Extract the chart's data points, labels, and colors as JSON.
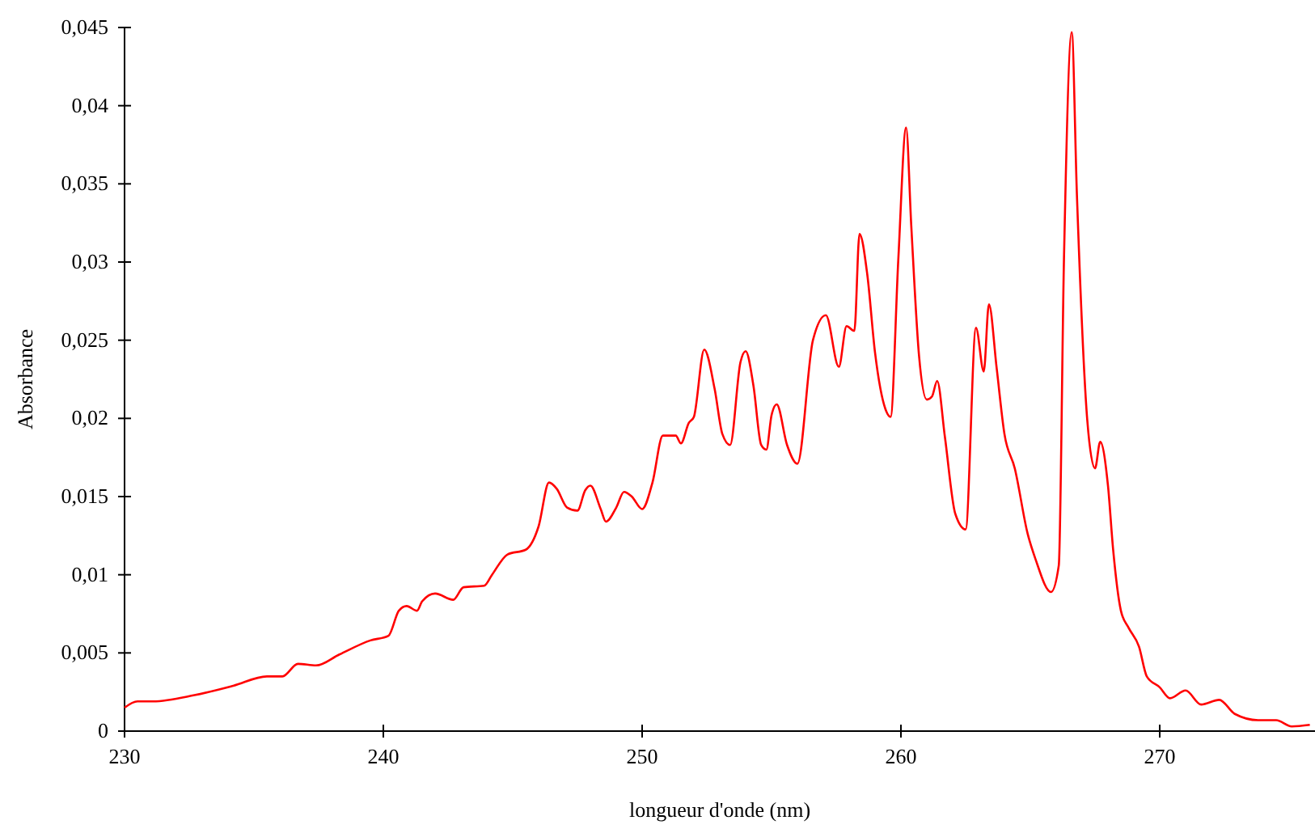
{
  "chart_data": {
    "type": "line",
    "xlabel": "longueur d'onde (nm)",
    "ylabel": "Absorbance",
    "xlim": [
      230,
      276
    ],
    "ylim": [
      0,
      0.045
    ],
    "xticks": [
      230,
      240,
      250,
      260,
      270
    ],
    "yticks": [
      {
        "value": 0,
        "label": "0"
      },
      {
        "value": 0.005,
        "label": "0,005"
      },
      {
        "value": 0.01,
        "label": "0,01"
      },
      {
        "value": 0.015,
        "label": "0,015"
      },
      {
        "value": 0.02,
        "label": "0,02"
      },
      {
        "value": 0.025,
        "label": "0,025"
      },
      {
        "value": 0.03,
        "label": "0,03"
      },
      {
        "value": 0.035,
        "label": "0,035"
      },
      {
        "value": 0.04,
        "label": "0,04"
      },
      {
        "value": 0.045,
        "label": "0,045"
      }
    ],
    "grid": false,
    "marker": "none",
    "line_style": "solid",
    "series": [
      {
        "color": "#ff0000",
        "x": [
          230,
          230.5,
          231.1,
          232.7,
          234.2,
          235.5,
          236.1,
          236.7,
          237.4,
          238.3,
          239.5,
          240.2,
          240.6,
          240.9,
          241.3,
          241.5,
          242.0,
          242.7,
          243.1,
          243.9,
          244.2,
          244.8,
          245.5,
          246.0,
          246.4,
          246.7,
          247.1,
          247.5,
          247.8,
          248.0,
          248.4,
          248.6,
          249.0,
          249.3,
          249.6,
          250.0,
          250.4,
          250.8,
          251.3,
          251.5,
          251.8,
          252.0,
          252.4,
          252.8,
          253.1,
          253.4,
          253.8,
          254.0,
          254.3,
          254.6,
          254.8,
          255.0,
          255.2,
          255.6,
          256.0,
          256.6,
          257.1,
          257.6,
          257.9,
          258.2,
          258.4,
          258.7,
          259.0,
          259.4,
          259.6,
          259.9,
          260.2,
          260.4,
          260.7,
          261.0,
          261.2,
          261.4,
          261.7,
          262.1,
          262.5,
          262.9,
          263.2,
          263.4,
          263.7,
          264.0,
          264.4,
          264.9,
          265.2,
          265.8,
          266.1,
          266.3,
          266.6,
          266.8,
          267.2,
          267.5,
          267.7,
          268.0,
          268.2,
          268.5,
          268.8,
          269.2,
          269.5,
          270.0,
          270.4,
          271.0,
          271.6,
          272.3,
          272.9,
          273.8,
          274.5,
          275.1,
          275.8
        ],
        "values": [
          0.0015,
          0.0019,
          0.0019,
          0.0023,
          0.0029,
          0.0035,
          0.0035,
          0.0043,
          0.0042,
          0.0049,
          0.0058,
          0.0061,
          0.0077,
          0.008,
          0.0077,
          0.0083,
          0.0088,
          0.0084,
          0.0092,
          0.0093,
          0.01,
          0.0113,
          0.0116,
          0.0131,
          0.0159,
          0.0155,
          0.0143,
          0.0141,
          0.0154,
          0.0157,
          0.0142,
          0.0134,
          0.0143,
          0.0153,
          0.015,
          0.0142,
          0.0159,
          0.0189,
          0.0189,
          0.0184,
          0.0197,
          0.0201,
          0.0244,
          0.0219,
          0.019,
          0.0183,
          0.0236,
          0.0243,
          0.0221,
          0.0183,
          0.018,
          0.0202,
          0.0209,
          0.0183,
          0.0171,
          0.025,
          0.0266,
          0.0233,
          0.0259,
          0.0256,
          0.0318,
          0.0292,
          0.0242,
          0.0206,
          0.0201,
          0.0302,
          0.0386,
          0.0323,
          0.024,
          0.0212,
          0.0214,
          0.0224,
          0.0188,
          0.0139,
          0.0129,
          0.0258,
          0.023,
          0.0273,
          0.0232,
          0.019,
          0.0168,
          0.0126,
          0.011,
          0.0089,
          0.0106,
          0.0302,
          0.0447,
          0.0343,
          0.0199,
          0.0168,
          0.0185,
          0.0157,
          0.0116,
          0.0077,
          0.0066,
          0.0054,
          0.0035,
          0.0028,
          0.0021,
          0.0026,
          0.0017,
          0.002,
          0.0011,
          0.0007,
          0.0007,
          0.0003,
          0.0004
        ]
      }
    ]
  }
}
